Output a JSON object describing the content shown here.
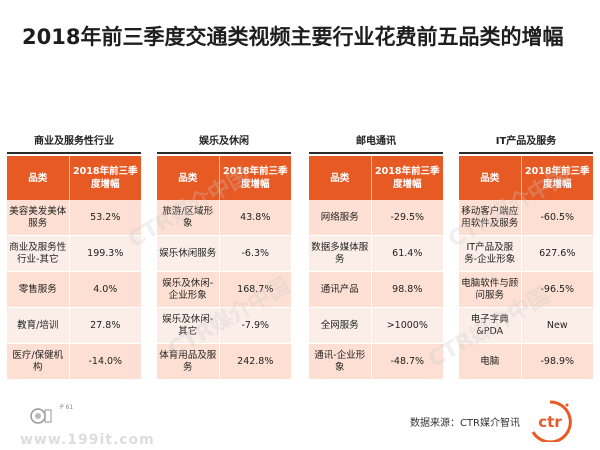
{
  "title": "2018年前三季度交通类视频主要行业花费前五品类的增幅",
  "colors": {
    "header": "#e85a24",
    "row_odd": "#fde0d3",
    "row_even": "#fbeee8",
    "logo": "#e85a24"
  },
  "panels": [
    {
      "title": "商业及服务性行业",
      "col1": "品类",
      "col2": "2018年前三季度增幅",
      "rows": [
        {
          "category": "美容美发美体服务",
          "value": "53.2%"
        },
        {
          "category": "商业及服务性行业-其它",
          "value": "199.3%"
        },
        {
          "category": "零售服务",
          "value": "4.0%"
        },
        {
          "category": "教育/培训",
          "value": "27.8%"
        },
        {
          "category": "医疗/保健机构",
          "value": "-14.0%"
        }
      ]
    },
    {
      "title": "娱乐及休闲",
      "col1": "品类",
      "col2": "2018年前三季度增幅",
      "rows": [
        {
          "category": "旅游/区域形象",
          "value": "43.8%"
        },
        {
          "category": "娱乐休闲服务",
          "value": "-6.3%"
        },
        {
          "category": "娱乐及休闲-企业形象",
          "value": "168.7%"
        },
        {
          "category": "娱乐及休闲-其它",
          "value": "-7.9%"
        },
        {
          "category": "体育用品及服务",
          "value": "242.8%"
        }
      ]
    },
    {
      "title": "邮电通讯",
      "col1": "品类",
      "col2": "2018年前三季度增幅",
      "rows": [
        {
          "category": "网络服务",
          "value": "-29.5%"
        },
        {
          "category": "数据多媒体服务",
          "value": "61.4%"
        },
        {
          "category": "通讯产品",
          "value": "98.8%"
        },
        {
          "category": "全网服务",
          "value": ">1000%"
        },
        {
          "category": "通讯-企业形象",
          "value": "-48.7%"
        }
      ]
    },
    {
      "title": "IT产品及服务",
      "col1": "品类",
      "col2": "2018年前三季度增幅",
      "rows": [
        {
          "category": "移动客户端应用软件及服务",
          "value": "-60.5%"
        },
        {
          "category": "IT产品及服务-企业形象",
          "value": "627.6%"
        },
        {
          "category": "电脑软件与顾问服务",
          "value": "-96.5%"
        },
        {
          "category": "电子字典&PDA",
          "value": "New"
        },
        {
          "category": "电脑",
          "value": "-98.9%"
        }
      ]
    }
  ],
  "footer": {
    "page": "P 61",
    "source": "数据来源：CTR媒介智讯",
    "logo_text": "ctr",
    "watermark": "CTR媒介中国",
    "url": "www.199it.com"
  }
}
